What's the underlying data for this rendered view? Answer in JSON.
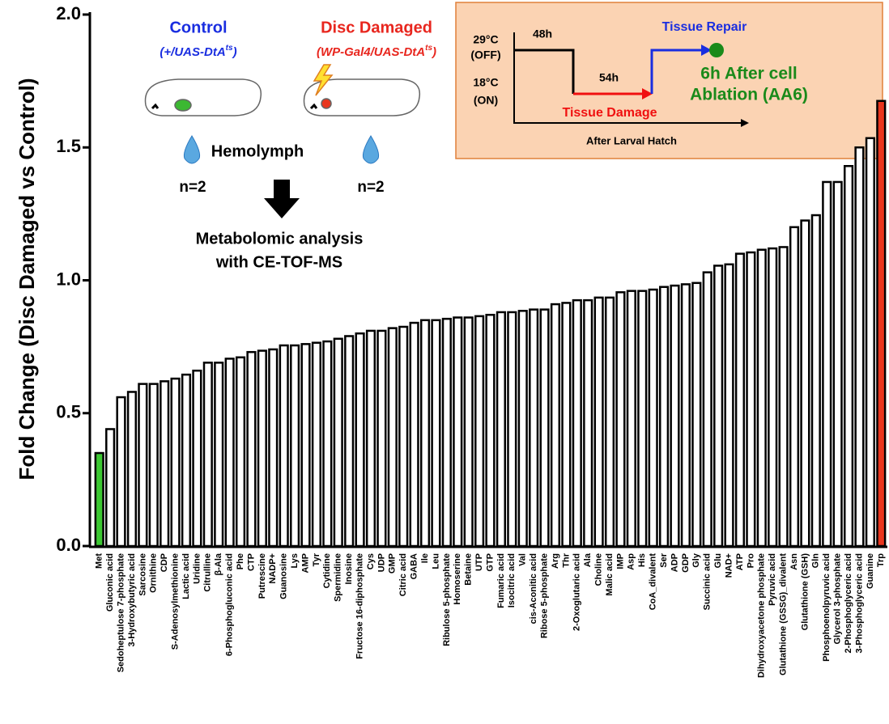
{
  "chart_data": {
    "type": "bar",
    "y_label": "Fold Change (Disc Damaged vs Control)",
    "categories": [
      "Met",
      "Gluconic acid",
      "Sedoheptulose 7-phosphate",
      "3-Hydroxybutyric acid",
      "Sarcosine",
      "Ornithine",
      "CDP",
      "S-Adenosylmethionine",
      "Lactic acid",
      "Uridine",
      "Citrulline",
      "β-Ala",
      "6-Phosphogluconic acid",
      "Phe",
      "CTP",
      "Putrescine",
      "NADP+",
      "Guanosine",
      "Lys",
      "AMP",
      "Tyr",
      "Cytidine",
      "Spermidine",
      "Inosine",
      "Fructose 16-diphosphate",
      "Cys",
      "UDP",
      "GMP",
      "Citric acid",
      "GABA",
      "Ile",
      "Leu",
      "Ribulose 5-phosphate",
      "Homoserine",
      "Betaine",
      "UTP",
      "GTP",
      "Fumaric acid",
      "Isocitric acid",
      "Val",
      "cis-Aconitic acid",
      "Ribose 5-phosphate",
      "Arg",
      "Thr",
      "2-Oxoglutaric acid",
      "Ala",
      "Choline",
      "Malic acid",
      "IMP",
      "Asp",
      "His",
      "CoA_divalent",
      "Ser",
      "ADP",
      "GDP",
      "Gly",
      "Succinic acid",
      "Glu",
      "NAD+",
      "ATP",
      "Pro",
      "Dihydroxyacetone phosphate",
      "Pyruvic acid",
      "Glutathione (GSSG)_divalent",
      "Asn",
      "Glutathione (GSH)",
      "Gln",
      "Phosphoenolpyruvic acid",
      "Glycerol 3-phosphate",
      "2-Phosphoglyceric acid",
      "3-Phosphoglyceric acid",
      "Guanine",
      "Trp"
    ],
    "values": [
      0.35,
      0.44,
      0.56,
      0.58,
      0.61,
      0.61,
      0.62,
      0.63,
      0.645,
      0.66,
      0.69,
      0.69,
      0.705,
      0.71,
      0.73,
      0.735,
      0.74,
      0.755,
      0.755,
      0.76,
      0.765,
      0.77,
      0.78,
      0.79,
      0.8,
      0.81,
      0.81,
      0.82,
      0.825,
      0.84,
      0.85,
      0.85,
      0.855,
      0.86,
      0.86,
      0.865,
      0.87,
      0.88,
      0.88,
      0.885,
      0.89,
      0.89,
      0.91,
      0.915,
      0.925,
      0.925,
      0.935,
      0.935,
      0.955,
      0.96,
      0.96,
      0.965,
      0.975,
      0.98,
      0.985,
      0.99,
      1.03,
      1.055,
      1.06,
      1.1,
      1.105,
      1.115,
      1.12,
      1.125,
      1.2,
      1.225,
      1.245,
      1.37,
      1.37,
      1.43,
      1.5,
      1.535,
      1.675
    ],
    "colors": [
      "#3cc832",
      "#ffffff",
      "#ffffff",
      "#ffffff",
      "#ffffff",
      "#ffffff",
      "#ffffff",
      "#ffffff",
      "#ffffff",
      "#ffffff",
      "#ffffff",
      "#ffffff",
      "#ffffff",
      "#ffffff",
      "#ffffff",
      "#ffffff",
      "#ffffff",
      "#ffffff",
      "#ffffff",
      "#ffffff",
      "#ffffff",
      "#ffffff",
      "#ffffff",
      "#ffffff",
      "#ffffff",
      "#ffffff",
      "#ffffff",
      "#ffffff",
      "#ffffff",
      "#ffffff",
      "#ffffff",
      "#ffffff",
      "#ffffff",
      "#ffffff",
      "#ffffff",
      "#ffffff",
      "#ffffff",
      "#ffffff",
      "#ffffff",
      "#ffffff",
      "#ffffff",
      "#ffffff",
      "#ffffff",
      "#ffffff",
      "#ffffff",
      "#ffffff",
      "#ffffff",
      "#ffffff",
      "#ffffff",
      "#ffffff",
      "#ffffff",
      "#ffffff",
      "#ffffff",
      "#ffffff",
      "#ffffff",
      "#ffffff",
      "#ffffff",
      "#ffffff",
      "#ffffff",
      "#ffffff",
      "#ffffff",
      "#ffffff",
      "#ffffff",
      "#ffffff",
      "#ffffff",
      "#ffffff",
      "#ffffff",
      "#ffffff",
      "#ffffff",
      "#ffffff",
      "#ffffff",
      "#ffffff",
      "#e8361e"
    ],
    "ylim": [
      0,
      2.0
    ],
    "yticks": [
      {
        "value": 0,
        "label": "0.0"
      },
      {
        "value": 0.5,
        "label": "0.5"
      },
      {
        "value": 1,
        "label": "1.0"
      },
      {
        "value": 1.5,
        "label": "1.5"
      },
      {
        "value": 2,
        "label": "2.0"
      }
    ],
    "annotations": {
      "control": {
        "label": "Control",
        "genotype": "(+/UAS-DtA",
        "genotype_sup": "ts",
        "genotype_close": ")",
        "n": "n=2"
      },
      "damaged": {
        "label": "Disc Damaged",
        "genotype": "(WP-Gal4/UAS-DtA",
        "genotype_sup": "ts",
        "genotype_close": ")",
        "n": "n=2"
      },
      "hemolymph": "Hemolymph",
      "analysis": [
        "Metabolomic analysis",
        "with CE-TOF-MS"
      ],
      "timeline": {
        "temp_off": [
          "29°C",
          "(OFF)"
        ],
        "temp_on": [
          "18°C",
          "(ON)"
        ],
        "t1": "48h",
        "t2": "54h",
        "repair": "Tissue Repair",
        "damage": "Tissue Damage",
        "result": [
          "6h After cell",
          "Ablation  (AA6)"
        ],
        "x_label": "After Larval Hatch"
      }
    }
  }
}
